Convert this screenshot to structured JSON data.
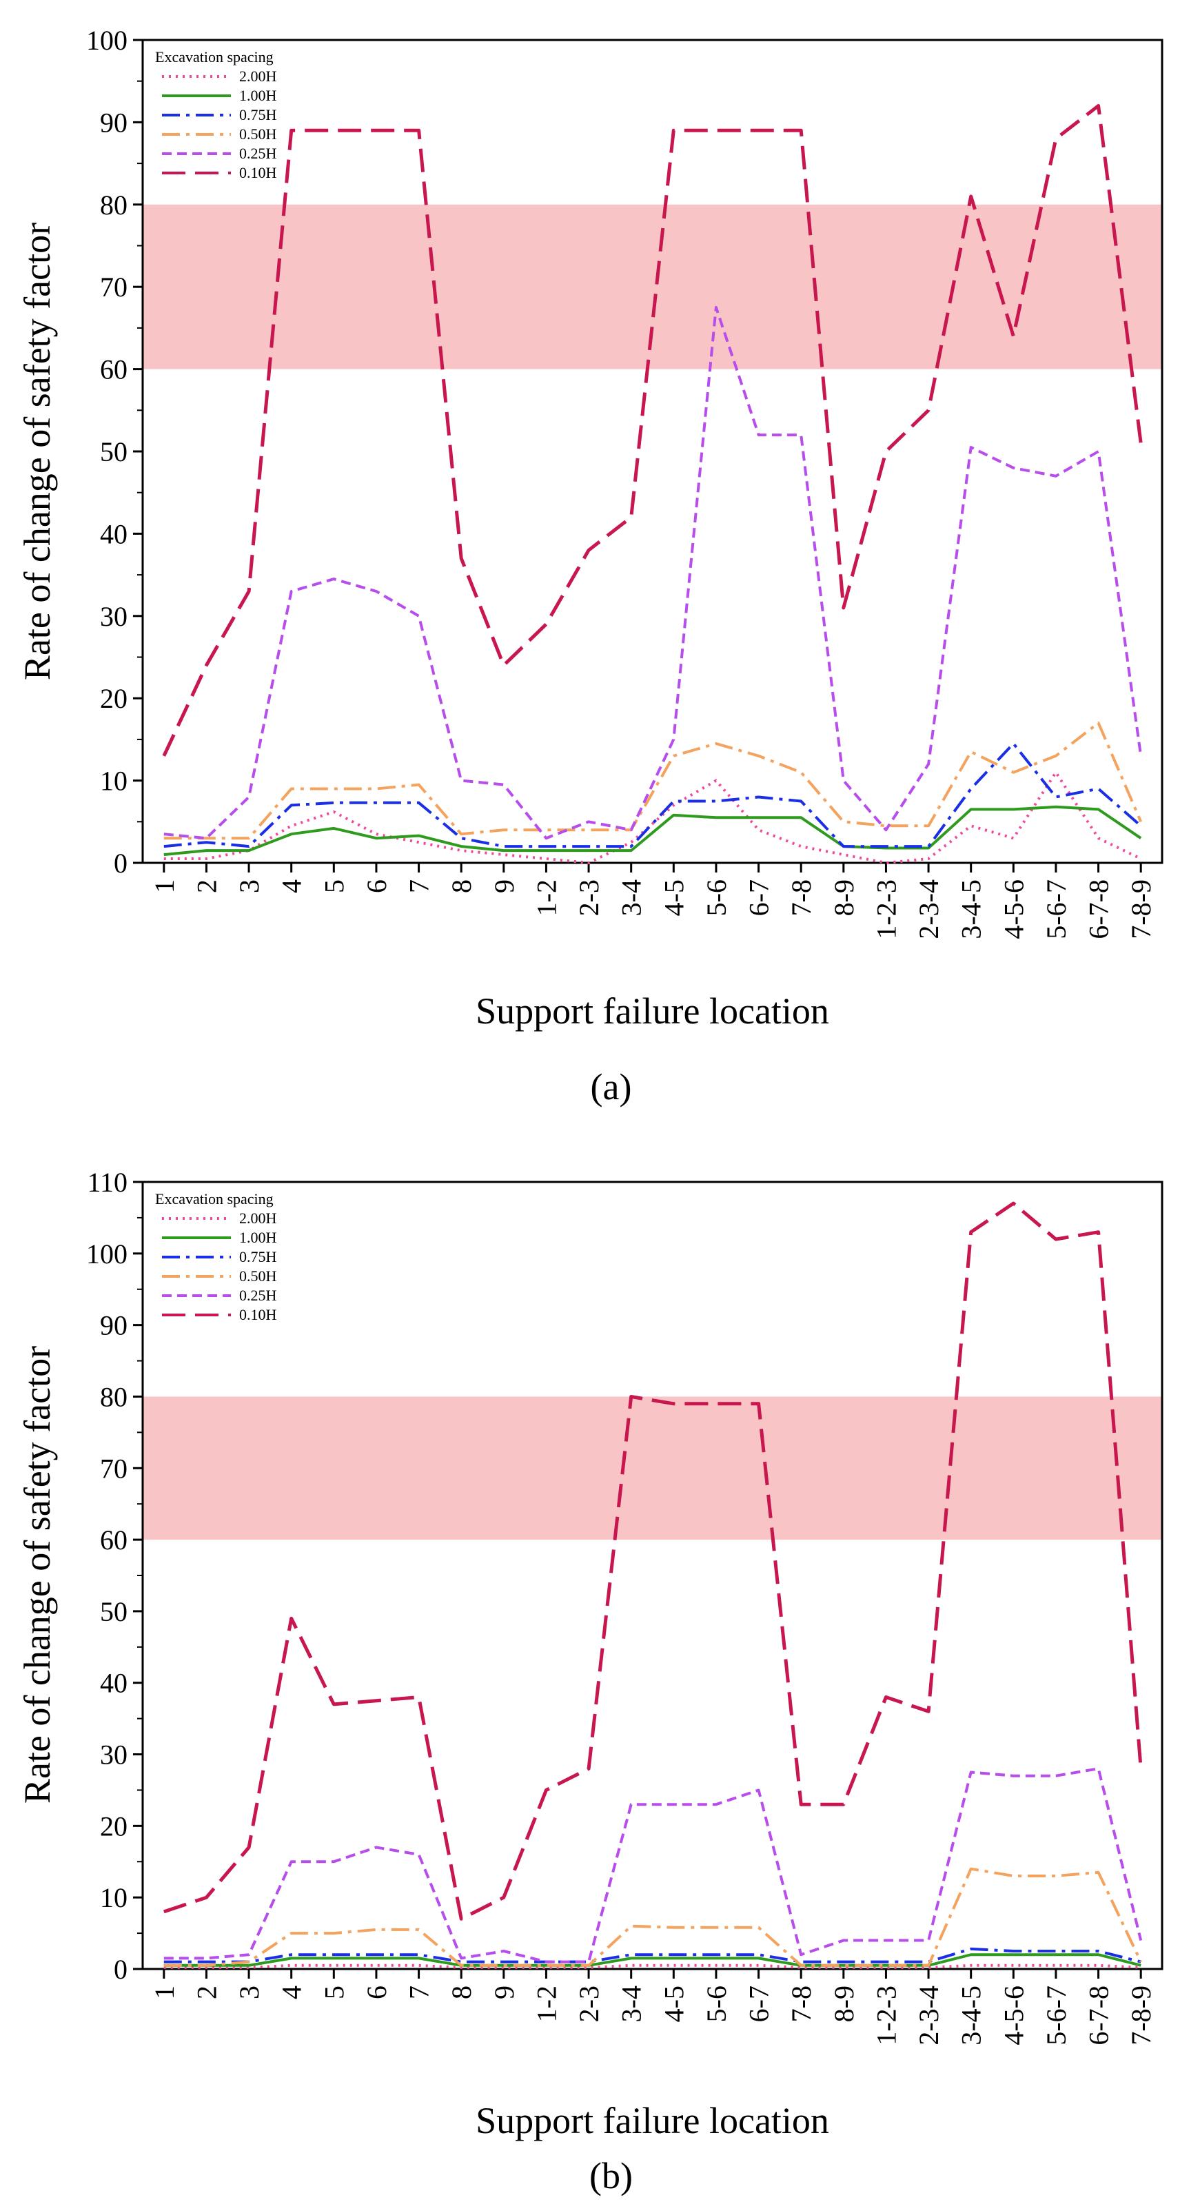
{
  "chart_data": [
    {
      "panel_label": "(a)",
      "type": "line",
      "xlabel": "Support failure location",
      "ylabel": "Rate of change of safety factor",
      "ylim": [
        0,
        100
      ],
      "yticks": [
        0,
        10,
        20,
        30,
        40,
        50,
        60,
        70,
        80,
        90,
        100
      ],
      "categories": [
        "1",
        "2",
        "3",
        "4",
        "5",
        "6",
        "7",
        "8",
        "9",
        "1-2",
        "2-3",
        "3-4",
        "4-5",
        "5-6",
        "6-7",
        "7-8",
        "8-9",
        "1-2-3",
        "2-3-4",
        "3-4-5",
        "4-5-6",
        "5-6-7",
        "6-7-8",
        "7-8-9"
      ],
      "highlight_band": {
        "y_from": 60,
        "y_to": 80,
        "color": "#f9c4c6"
      },
      "legend": {
        "title": "Excavation spacing",
        "position": "top-left"
      },
      "series": [
        {
          "name": "2.00H",
          "color": "#f0489a",
          "dash": "dotted",
          "values": [
            0.5,
            0.5,
            1.5,
            4.5,
            6.2,
            3.5,
            2.5,
            1.5,
            1,
            0.5,
            0,
            2.5,
            7,
            10,
            4,
            2,
            1,
            0,
            0.5,
            4.5,
            3,
            11,
            3,
            0.5
          ]
        },
        {
          "name": "1.00H",
          "color": "#2e9a1e",
          "dash": "solid",
          "values": [
            1,
            1.5,
            1.5,
            3.5,
            4.2,
            3,
            3.3,
            2,
            1.5,
            1.5,
            1.5,
            1.5,
            5.8,
            5.5,
            5.5,
            5.5,
            2,
            1.8,
            1.8,
            6.5,
            6.5,
            6.8,
            6.5,
            3
          ]
        },
        {
          "name": "0.75H",
          "color": "#1a2ee6",
          "dash": "dashdot",
          "values": [
            2,
            2.5,
            2,
            7,
            7.3,
            7.3,
            7.3,
            3,
            2,
            2,
            2,
            2,
            7.5,
            7.5,
            8,
            7.5,
            2,
            2,
            2,
            9,
            14.5,
            8,
            9,
            4.5
          ]
        },
        {
          "name": "0.50H",
          "color": "#f4a35e",
          "dash": "dashdot",
          "values": [
            3,
            3,
            3,
            9,
            9,
            9,
            9.5,
            3.5,
            4,
            4,
            4,
            4,
            13,
            14.5,
            13,
            11,
            5,
            4.5,
            4.5,
            13.5,
            11,
            13,
            17,
            5
          ]
        },
        {
          "name": "0.25H",
          "color": "#b74dea",
          "dash": "dashed",
          "values": [
            3.5,
            3,
            8,
            33,
            34.5,
            33,
            30,
            10,
            9.5,
            3,
            5,
            4,
            15,
            67.5,
            52,
            52,
            10,
            4,
            12,
            50.5,
            48,
            47,
            50,
            13
          ]
        },
        {
          "name": "0.10H",
          "color": "#c8174e",
          "dash": "longdash",
          "values": [
            13,
            24,
            33,
            89,
            89,
            89,
            89,
            37,
            24,
            29,
            38,
            42,
            89,
            89,
            89,
            89,
            31,
            50,
            55,
            81,
            64,
            88,
            92,
            51
          ]
        }
      ]
    },
    {
      "panel_label": "(b)",
      "type": "line",
      "xlabel": "Support failure location",
      "ylabel": "Rate of change of safety factor",
      "ylim": [
        0,
        110
      ],
      "yticks": [
        0,
        10,
        20,
        30,
        40,
        50,
        60,
        70,
        80,
        90,
        100,
        110
      ],
      "categories": [
        "1",
        "2",
        "3",
        "4",
        "5",
        "6",
        "7",
        "8",
        "9",
        "1-2",
        "2-3",
        "3-4",
        "4-5",
        "5-6",
        "6-7",
        "7-8",
        "8-9",
        "1-2-3",
        "2-3-4",
        "3-4-5",
        "4-5-6",
        "5-6-7",
        "6-7-8",
        "7-8-9"
      ],
      "highlight_band": {
        "y_from": 60,
        "y_to": 80,
        "color": "#f9c4c6"
      },
      "legend": {
        "title": "Excavation spacing",
        "position": "top-left"
      },
      "series": [
        {
          "name": "2.00H",
          "color": "#f0489a",
          "dash": "dotted",
          "values": [
            0.2,
            0.2,
            0.2,
            0.5,
            0.5,
            0.5,
            0.5,
            0.2,
            0.2,
            0.2,
            0.2,
            0.5,
            0.5,
            0.5,
            0.5,
            0.2,
            0.2,
            0.2,
            0.2,
            0.5,
            0.5,
            0.5,
            0.5,
            0.2
          ]
        },
        {
          "name": "1.00H",
          "color": "#2e9a1e",
          "dash": "solid",
          "values": [
            0.5,
            0.5,
            0.5,
            1.5,
            1.5,
            1.5,
            1.5,
            0.5,
            0.5,
            0.5,
            0.5,
            1.5,
            1.5,
            1.5,
            1.5,
            0.5,
            0.5,
            0.5,
            0.5,
            2,
            2,
            2,
            2,
            0.5
          ]
        },
        {
          "name": "0.75H",
          "color": "#1a2ee6",
          "dash": "dashdot",
          "values": [
            1,
            1,
            1,
            2,
            2,
            2,
            2,
            1,
            1,
            1,
            1,
            2,
            2,
            2,
            2,
            1,
            1,
            1,
            1,
            2.8,
            2.5,
            2.5,
            2.5,
            1
          ]
        },
        {
          "name": "0.50H",
          "color": "#f4a35e",
          "dash": "dashdot",
          "values": [
            0.5,
            0.5,
            1,
            5,
            5,
            5.5,
            5.5,
            0.5,
            0.5,
            0.5,
            0.5,
            6,
            5.8,
            5.8,
            5.8,
            0.5,
            0.5,
            0.5,
            0.5,
            14,
            13,
            13,
            13.5,
            1
          ]
        },
        {
          "name": "0.25H",
          "color": "#b74dea",
          "dash": "dashed",
          "values": [
            1.5,
            1.5,
            2,
            15,
            15,
            17,
            16,
            1.5,
            2.5,
            1,
            1,
            23,
            23,
            23,
            25,
            2,
            4,
            4,
            4,
            27.5,
            27,
            27,
            28,
            4
          ]
        },
        {
          "name": "0.10H",
          "color": "#c8174e",
          "dash": "longdash",
          "values": [
            8,
            10,
            17,
            49,
            37,
            37.5,
            38,
            7,
            10,
            25,
            28,
            80,
            79,
            79,
            79,
            23,
            23,
            38,
            36,
            103,
            107,
            102,
            103,
            28
          ]
        }
      ]
    }
  ]
}
